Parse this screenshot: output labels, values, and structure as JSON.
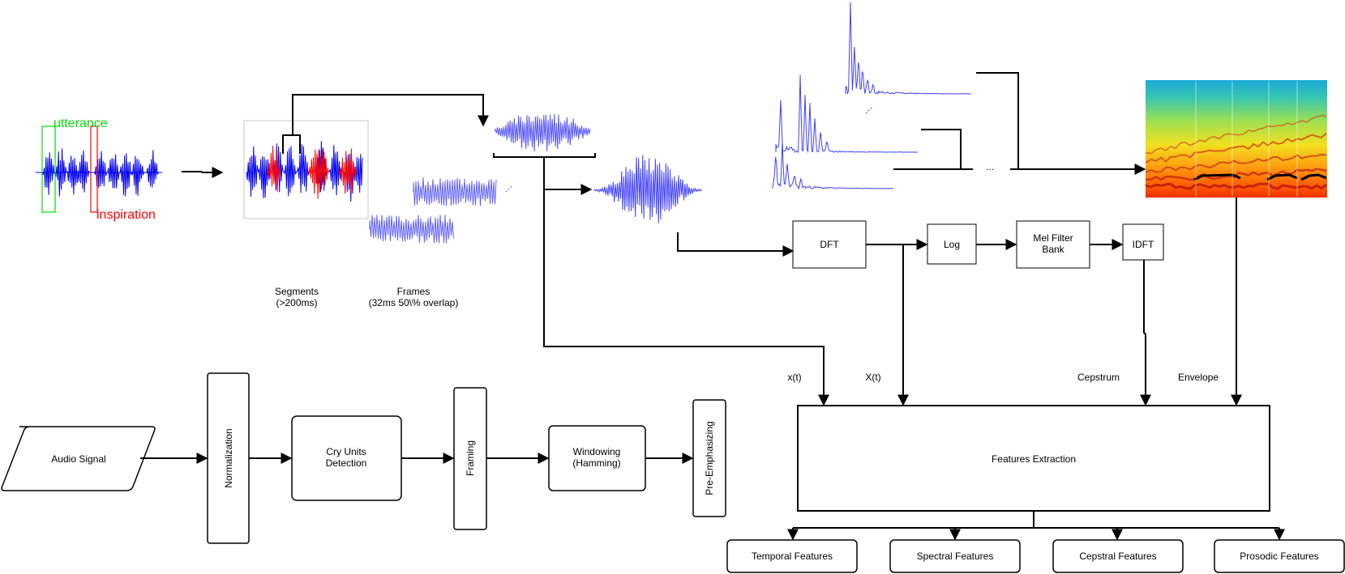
{
  "colors": {
    "utterance": "#00e000",
    "inspiration": "#ff0000",
    "wave_blue": "#0000ee",
    "wave_light": "#5555ff",
    "wave_red": "#ff0000"
  },
  "signal": {
    "utterance_label": "utterance",
    "inspiration_label": "inspiration"
  },
  "stages": {
    "segments_line1": "Segments",
    "segments_line2": "(>200ms)",
    "frames_line1": "Frames",
    "frames_line2": "(32ms 50\\% overlap)",
    "ellipsis": "..."
  },
  "spectral": {
    "dft": "DFT",
    "log": "Log",
    "mel_line1": "Mel Filter",
    "mel_line2": "Bank",
    "idft": "IDFT"
  },
  "signals": {
    "xt": "x(t)",
    "Xt": "X(t)",
    "cepstrum": "Cepstrum",
    "envelope": "Envelope"
  },
  "pipeline": {
    "audio_signal": "Audio Signal",
    "normalization": "Normalization",
    "cry_line1": "Cry Units",
    "cry_line2": "Detection",
    "framing": "Framing",
    "windowing_line1": "Windowing",
    "windowing_line2": "(Hamming)",
    "pre_emphasizing": "Pre-Emphasizing"
  },
  "features": {
    "extraction": "Features Extraction",
    "temporal": "Temporal Features",
    "spectral": "Spectral Features",
    "cepstral": "Cepstral Features",
    "prosodic": "Prosodic Features"
  }
}
